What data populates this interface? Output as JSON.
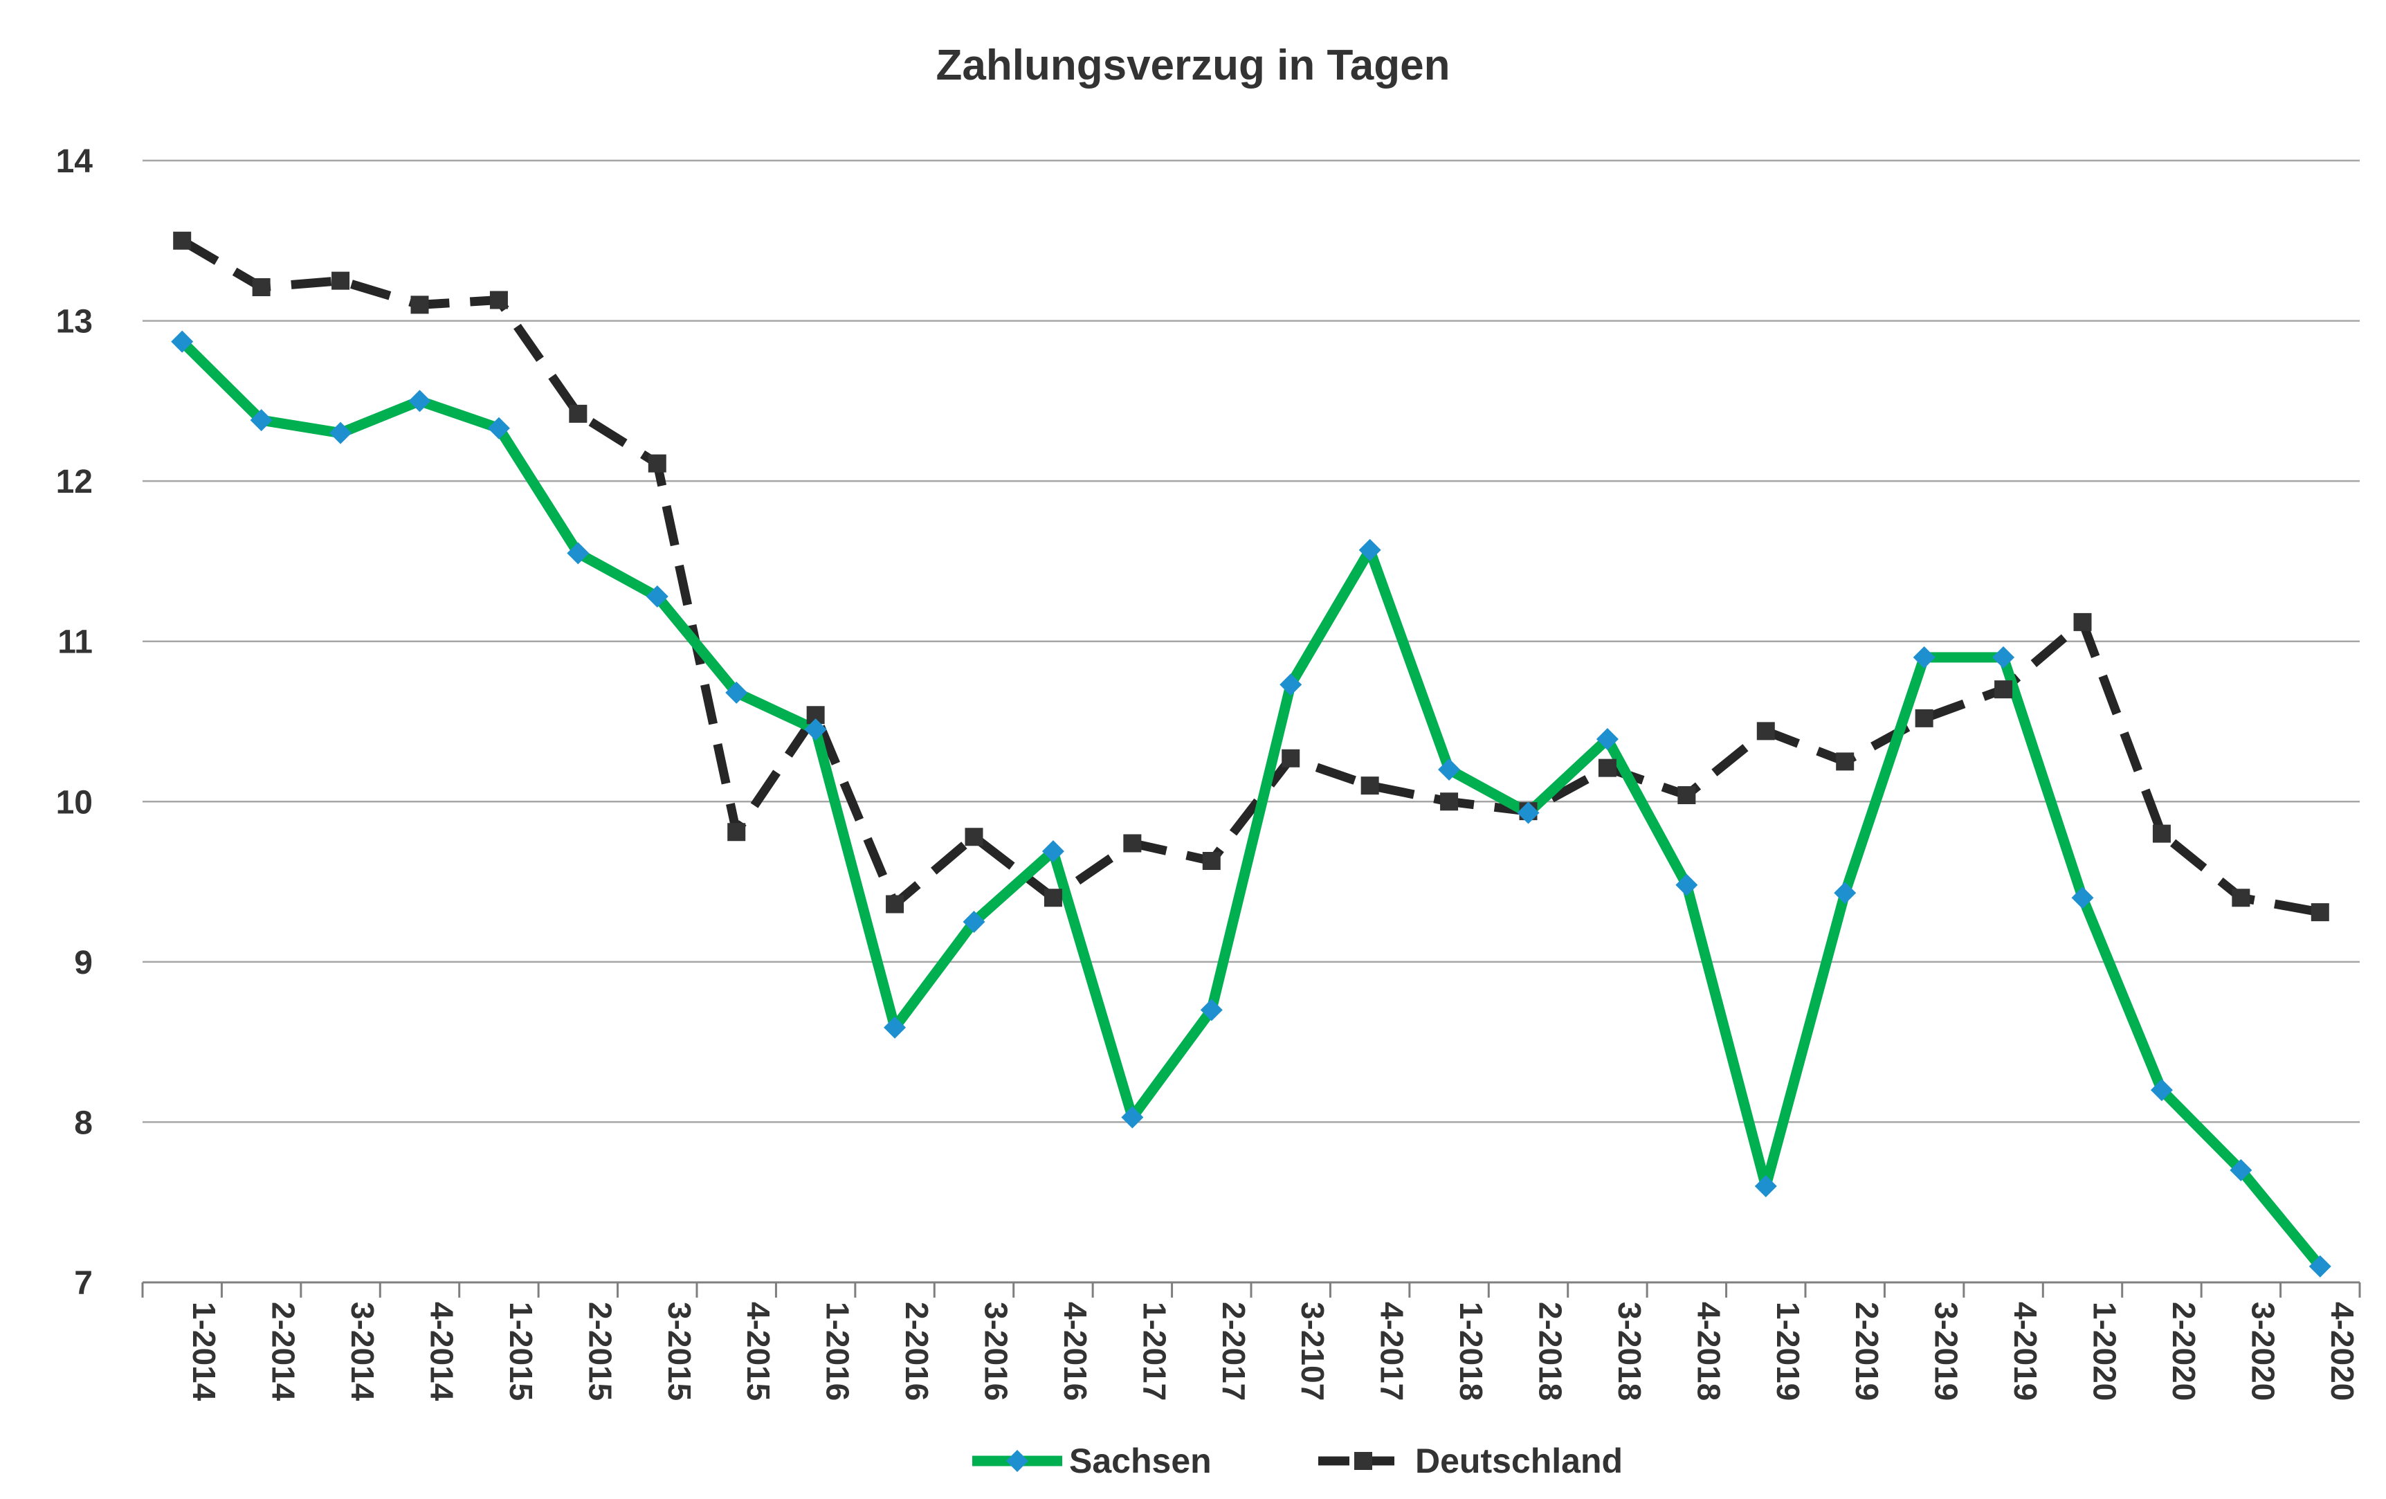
{
  "chart_data": {
    "type": "line",
    "title": "Zahlungsverzug in Tagen",
    "xlabel": "",
    "ylabel": "",
    "ylim": [
      7,
      14
    ],
    "yticks": [
      "7",
      "8",
      "9",
      "10",
      "11",
      "12",
      "13",
      "14"
    ],
    "grid": true,
    "legend_position": "bottom",
    "categories": [
      "1-2014",
      "2-2014",
      "3-2014",
      "4-2014",
      "1-2015",
      "2-2015",
      "3-2015",
      "4-2015",
      "1-2016",
      "2-2016",
      "3-2016",
      "4-2016",
      "1-2017",
      "2-2017",
      "3-2107",
      "4-2017",
      "1-2018",
      "2-2018",
      "3-2018",
      "4-2018",
      "1-2019",
      "2-2019",
      "3-2019",
      "4-2019",
      "1-2020",
      "2-2020",
      "3-2020",
      "4-2020"
    ],
    "series": [
      {
        "name": "Sachsen",
        "color": "#00b050",
        "marker_color": "#1e90d0",
        "marker": "diamond",
        "line_style": "solid",
        "values": [
          12.87,
          12.38,
          12.3,
          12.5,
          12.33,
          11.55,
          11.28,
          10.68,
          10.45,
          8.59,
          9.25,
          9.69,
          8.03,
          8.7,
          10.73,
          11.57,
          10.2,
          9.93,
          10.39,
          9.48,
          7.6,
          9.43,
          10.9,
          10.9,
          9.4,
          8.2,
          7.7,
          7.1
        ]
      },
      {
        "name": "Deutschland",
        "color": "#262626",
        "marker_color": "#333333",
        "marker": "square",
        "line_style": "dashed",
        "values": [
          13.5,
          13.21,
          13.25,
          13.1,
          13.13,
          12.42,
          12.11,
          9.81,
          10.54,
          9.36,
          9.78,
          9.4,
          9.74,
          9.63,
          10.27,
          10.1,
          10.0,
          9.94,
          10.21,
          10.04,
          10.44,
          10.25,
          10.52,
          10.7,
          11.12,
          9.8,
          9.4,
          9.31
        ]
      }
    ]
  }
}
